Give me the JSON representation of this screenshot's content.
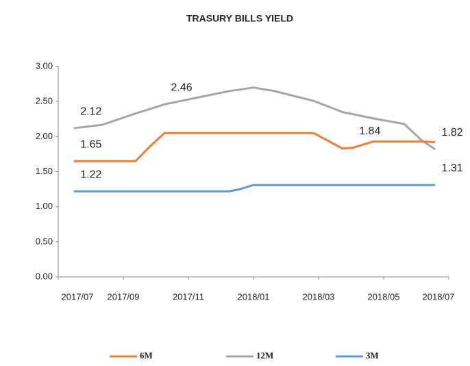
{
  "chart_data": {
    "type": "line",
    "title": "TRASURY  BILLS YIELD",
    "x": [
      2017.54,
      2017.614,
      2017.698,
      2017.733,
      2017.772,
      2017.912,
      2017.939,
      2017.965,
      2018.0,
      2018.053,
      2018.154,
      2018.228,
      2018.254,
      2018.307,
      2018.386,
      2018.43,
      2018.465
    ],
    "series": [
      {
        "name": "6M",
        "color": "#ed7d31",
        "values": [
          1.65,
          1.65,
          1.65,
          1.85,
          2.05,
          2.05,
          2.05,
          2.05,
          2.05,
          2.05,
          2.05,
          1.83,
          1.84,
          1.93,
          1.93,
          1.93,
          1.92
        ],
        "value_labels": [
          "1.65",
          null,
          null,
          null,
          null,
          null,
          null,
          null,
          null,
          null,
          null,
          null,
          "1.84",
          null,
          null,
          null,
          null
        ]
      },
      {
        "name": "12M",
        "color": "#a5a5a5",
        "values": [
          2.12,
          2.17,
          2.33,
          2.39,
          2.46,
          2.62,
          2.65,
          2.67,
          2.7,
          2.65,
          2.51,
          2.35,
          2.32,
          2.26,
          2.18,
          1.95,
          1.82
        ],
        "value_labels": [
          "2.12",
          null,
          null,
          null,
          "2.46",
          null,
          null,
          null,
          null,
          null,
          null,
          null,
          null,
          null,
          null,
          null,
          "1.82"
        ]
      },
      {
        "name": "3M",
        "color": "#5b9bd5",
        "values": [
          1.22,
          1.22,
          1.22,
          1.22,
          1.22,
          1.22,
          1.22,
          1.25,
          1.31,
          1.31,
          1.31,
          1.31,
          1.31,
          1.31,
          1.31,
          1.31,
          1.31
        ],
        "value_labels": [
          "1.22",
          null,
          null,
          null,
          null,
          null,
          null,
          null,
          null,
          null,
          null,
          null,
          null,
          null,
          null,
          null,
          "1.31"
        ]
      }
    ],
    "xlim": [
      2017.5,
      2018.5
    ],
    "xticks": [
      {
        "value": 2017.5,
        "label": "2017/07"
      },
      {
        "value": 2017.6667,
        "label": "2017/09"
      },
      {
        "value": 2017.8333,
        "label": "2017/11"
      },
      {
        "value": 2018.0,
        "label": "2018/01"
      },
      {
        "value": 2018.1667,
        "label": "2018/03"
      },
      {
        "value": 2018.3333,
        "label": "2018/05"
      },
      {
        "value": 2018.5,
        "label": "2018/07"
      }
    ],
    "ylim": [
      0,
      3
    ],
    "yticks": [
      {
        "value": 0,
        "label": "0.00"
      },
      {
        "value": 0.5,
        "label": "0.50"
      },
      {
        "value": 1,
        "label": "1.00"
      },
      {
        "value": 1.5,
        "label": "1.50"
      },
      {
        "value": 2,
        "label": "2.00"
      },
      {
        "value": 2.5,
        "label": "2.50"
      },
      {
        "value": 3,
        "label": "3.00"
      }
    ],
    "grid": false,
    "legend": "bottom"
  }
}
